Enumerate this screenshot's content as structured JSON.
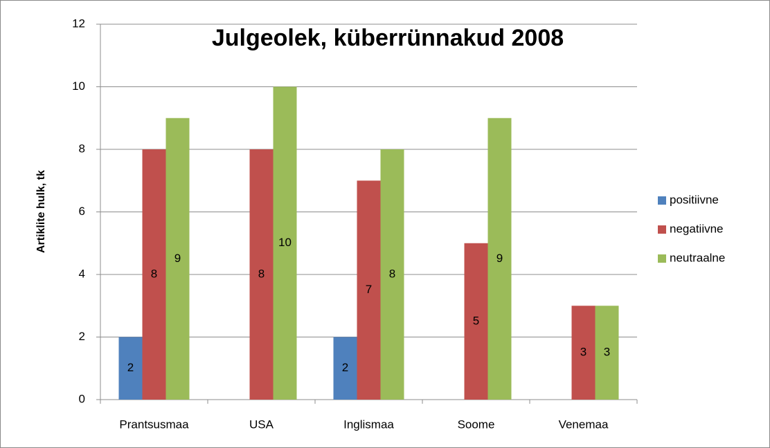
{
  "chart_data": {
    "type": "bar",
    "title": "Julgeolek, küberrünnakud 2008",
    "y_label": "Artiklite hulk, tk",
    "categories": [
      "Prantsusmaa",
      "USA",
      "Inglismaa",
      "Soome",
      "Venemaa"
    ],
    "series": [
      {
        "name": "positiivne",
        "color": "#4f81bd",
        "values": [
          2,
          null,
          2,
          null,
          null
        ]
      },
      {
        "name": "negatiivne",
        "color": "#c0504d",
        "values": [
          8,
          8,
          7,
          5,
          3
        ]
      },
      {
        "name": "neutraalne",
        "color": "#9bbb59",
        "values": [
          9,
          10,
          8,
          9,
          3
        ]
      }
    ],
    "ylim": [
      0,
      12
    ],
    "yticks": [
      0,
      2,
      4,
      6,
      8,
      10,
      12
    ],
    "grid": true,
    "legend": "right",
    "data_labels": true
  }
}
